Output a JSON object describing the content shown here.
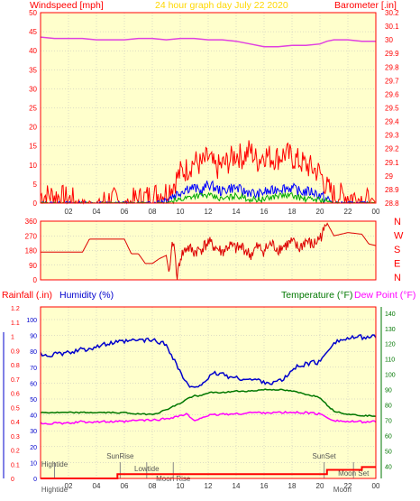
{
  "colors": {
    "plot_bg": "#ffffcc",
    "axis_red": "#ff0000",
    "title_yellow": "#ffd700",
    "barometer_magenta": "#e040e0",
    "humidity_blue": "#0000cc",
    "temperature_green": "#007700",
    "dewpoint_magenta": "#ff00ff",
    "wind_blue": "#0000ff",
    "wind_green": "#00aa00",
    "grid": "#bbbbbb"
  },
  "header": {
    "left_label": "Windspeed [mph]",
    "title": "24 hour graph day    July 22 2020",
    "right_label": "Barometer [.in]"
  },
  "bottom_header": {
    "rainfall": "Rainfall (.in)",
    "humidity": "Humidity (%)",
    "temperature": "Temperature (°F)",
    "dewpoint": "Dew Point (°F)"
  },
  "compass": [
    "N",
    "W",
    "S",
    "E",
    "N"
  ],
  "chart_data": [
    {
      "type": "line",
      "name": "windspeed_barometer",
      "xlabel": "",
      "x_ticks": [
        "02",
        "04",
        "06",
        "08",
        "10",
        "12",
        "14",
        "16",
        "18",
        "20",
        "22",
        "00"
      ],
      "ylabel": "Windspeed [mph]",
      "ylim": [
        0,
        50
      ],
      "y_ticks": [
        0,
        5,
        10,
        15,
        20,
        25,
        30,
        35,
        40,
        45,
        50
      ],
      "y2label": "Barometer [.in]",
      "y2lim": [
        28.8,
        30.2
      ],
      "y2_ticks": [
        "28.8",
        "28.9",
        "29",
        "29.1",
        "29.2",
        "29.3",
        "29.4",
        "29.5",
        "29.6",
        "29.7",
        "29.8",
        "29.9",
        "30",
        "30.1",
        "30.2"
      ],
      "series": [
        {
          "name": "Barometer",
          "axis": "y2",
          "x": [
            0,
            1,
            2,
            3,
            4,
            5,
            6,
            7,
            8,
            9,
            10,
            11,
            12,
            13,
            14,
            15,
            16,
            17,
            18,
            19,
            20,
            20.5,
            21,
            22,
            23,
            24
          ],
          "values": [
            30.02,
            30.01,
            30.01,
            30.01,
            30.0,
            30.0,
            30.0,
            30.01,
            30.01,
            30.0,
            30.01,
            30.01,
            30.0,
            30.0,
            29.99,
            29.97,
            29.95,
            29.95,
            29.96,
            29.96,
            29.97,
            29.99,
            30.0,
            30.0,
            29.99,
            29.99
          ]
        },
        {
          "name": "Wind gust",
          "kind": "gust",
          "x": [
            0,
            1,
            2,
            3,
            4,
            5,
            6,
            7,
            8,
            9,
            9.5,
            10,
            10.5,
            11,
            11.5,
            12,
            12.5,
            13,
            13.5,
            14,
            14.5,
            15,
            15.5,
            16,
            16.5,
            17,
            17.5,
            18,
            18.5,
            19,
            19.5,
            20,
            20.5,
            21,
            22,
            23,
            24
          ],
          "values": [
            2,
            2,
            1,
            0,
            0,
            1,
            0,
            1,
            2,
            3,
            5,
            8,
            9,
            11,
            10,
            12,
            9,
            10,
            11,
            13,
            12,
            14,
            11,
            13,
            12,
            12,
            13,
            12,
            11,
            10,
            9,
            8,
            4,
            2,
            2,
            1,
            0
          ]
        },
        {
          "name": "Wind average",
          "kind": "average",
          "x": [
            0,
            1,
            2,
            3,
            4,
            5,
            6,
            7,
            8,
            9,
            9.5,
            10,
            10.5,
            11,
            11.5,
            12,
            12.5,
            13,
            13.5,
            14,
            14.5,
            15,
            15.5,
            16,
            16.5,
            17,
            17.5,
            18,
            18.5,
            19,
            19.5,
            20,
            20.5,
            21,
            22,
            23,
            24
          ],
          "values": [
            0,
            0,
            0,
            0,
            0,
            0,
            0,
            0,
            0,
            1,
            2,
            3,
            4,
            4,
            3,
            5,
            4,
            3,
            4,
            4,
            3,
            3,
            2,
            3,
            3,
            4,
            4,
            4,
            3,
            3,
            3,
            2,
            1,
            0,
            0,
            0,
            0
          ]
        },
        {
          "name": "Wind low",
          "kind": "low",
          "x": [
            0,
            8,
            9,
            10,
            11,
            12,
            13,
            14,
            15,
            16,
            17,
            18,
            19,
            20,
            21,
            24
          ],
          "values": [
            0,
            0,
            0,
            1,
            2,
            2,
            1,
            2,
            1,
            1,
            2,
            2,
            1,
            1,
            0,
            0
          ]
        }
      ]
    },
    {
      "type": "line",
      "name": "wind_direction",
      "ylim": [
        0,
        360
      ],
      "y_ticks": [
        0,
        90,
        180,
        270,
        360
      ],
      "series": [
        {
          "name": "Direction",
          "x": [
            0,
            1,
            2,
            3,
            3.5,
            4,
            5,
            6,
            6.5,
            7,
            7.5,
            8,
            8.5,
            9,
            9.2,
            9.5,
            9.8,
            10,
            10.5,
            11,
            11.5,
            12,
            12.5,
            13,
            13.5,
            14,
            14.5,
            15,
            15.5,
            16,
            16.5,
            17,
            17.5,
            18,
            18.5,
            19,
            19.5,
            20,
            20.3,
            20.5,
            21,
            22,
            23,
            23.5,
            24
          ],
          "values": [
            170,
            170,
            170,
            170,
            250,
            250,
            250,
            250,
            160,
            160,
            100,
            100,
            130,
            150,
            40,
            250,
            10,
            140,
            200,
            170,
            190,
            230,
            200,
            170,
            210,
            190,
            200,
            150,
            200,
            180,
            220,
            190,
            210,
            230,
            190,
            240,
            210,
            260,
            300,
            350,
            270,
            290,
            280,
            220,
            210
          ]
        }
      ]
    },
    {
      "type": "line",
      "name": "humidity_temperature_rain",
      "x_ticks": [
        "02",
        "04",
        "06",
        "08",
        "10",
        "12",
        "14",
        "16",
        "18",
        "20",
        "22",
        "00"
      ],
      "y_left_rain_ticks": [
        "0",
        "0.1",
        "0.2",
        "0.3",
        "0.4",
        "0.5",
        "0.6",
        "0.7",
        "0.8",
        "0.9",
        "1",
        "1.1",
        "1.2"
      ],
      "y_left_rain_lim": [
        0,
        1.2
      ],
      "y_left_humidity_ticks": [
        0,
        10,
        20,
        30,
        40,
        50,
        60,
        70,
        80,
        90,
        100
      ],
      "y_left_humidity_lim": [
        0,
        100
      ],
      "y_right_ticks": [
        40,
        50,
        60,
        70,
        80,
        90,
        100,
        110,
        120,
        130,
        140
      ],
      "y_right_lim": [
        32,
        144
      ],
      "series": [
        {
          "name": "Humidity",
          "axis": "humidity",
          "x": [
            0,
            1,
            2,
            3,
            4,
            5,
            6,
            7,
            8,
            8.5,
            9,
            9.5,
            10,
            10.5,
            11,
            11.5,
            12,
            12.5,
            13,
            13.5,
            14,
            14.5,
            15,
            15.5,
            16,
            16.5,
            17,
            17.5,
            18,
            18.5,
            19,
            19.5,
            20,
            20.5,
            21,
            22,
            23,
            24
          ],
          "values": [
            78,
            78,
            79,
            81,
            83,
            85,
            86,
            87,
            87,
            86,
            84,
            76,
            67,
            59,
            56,
            60,
            63,
            66,
            66,
            64,
            63,
            63,
            62,
            62,
            61,
            60,
            61,
            63,
            68,
            71,
            72,
            73,
            73,
            80,
            86,
            88,
            89,
            89
          ]
        },
        {
          "name": "Temperature",
          "axis": "temp",
          "x": [
            0,
            1,
            2,
            3,
            4,
            5,
            6,
            7,
            8,
            8.5,
            9,
            9.5,
            10,
            10.5,
            11,
            11.5,
            12,
            13,
            14,
            15,
            16,
            17,
            18,
            19,
            19.5,
            20,
            20.5,
            21,
            22,
            23,
            24
          ],
          "values": [
            75,
            75,
            75,
            75,
            75,
            75,
            75,
            74,
            74,
            75,
            77,
            79,
            81,
            84,
            86,
            86,
            88,
            88,
            89,
            89,
            90,
            90,
            89,
            87,
            86,
            85,
            80,
            76,
            74,
            73,
            73
          ]
        },
        {
          "name": "Dew Point",
          "axis": "temp",
          "x": [
            0,
            1,
            2,
            3,
            4,
            5,
            6,
            7,
            8,
            9,
            9.5,
            10,
            10.5,
            11,
            11.5,
            12,
            13,
            14,
            15,
            16,
            17,
            18,
            19,
            20,
            20.5,
            21,
            22,
            23,
            24
          ],
          "values": [
            68,
            68,
            68,
            69,
            69,
            69,
            69,
            70,
            70,
            71,
            72,
            73,
            74,
            69,
            72,
            73,
            74,
            74,
            75,
            75,
            75,
            75,
            75,
            74,
            72,
            70,
            69,
            69,
            69
          ]
        },
        {
          "name": "Rainfall",
          "axis": "rain",
          "x": [
            0,
            5.5,
            5.5,
            20.5,
            20.5,
            23,
            23,
            24
          ],
          "values": [
            0,
            0,
            0.03,
            0.03,
            0.06,
            0.06,
            0.08,
            0.08
          ]
        }
      ],
      "events": [
        {
          "label": "Hightide",
          "x": 1.0,
          "tick_label": "Hightide"
        },
        {
          "label": "SunRise",
          "x": 5.7
        },
        {
          "label": "Lowtide",
          "x": 7.6
        },
        {
          "label": "Moon Rise",
          "x": 9.5
        },
        {
          "label": "SunSet",
          "x": 20.3
        },
        {
          "label": "Moon Set",
          "x": 22.4
        },
        {
          "label": "Moon",
          "x": 21.6,
          "tick_label": "Moon"
        }
      ]
    }
  ]
}
